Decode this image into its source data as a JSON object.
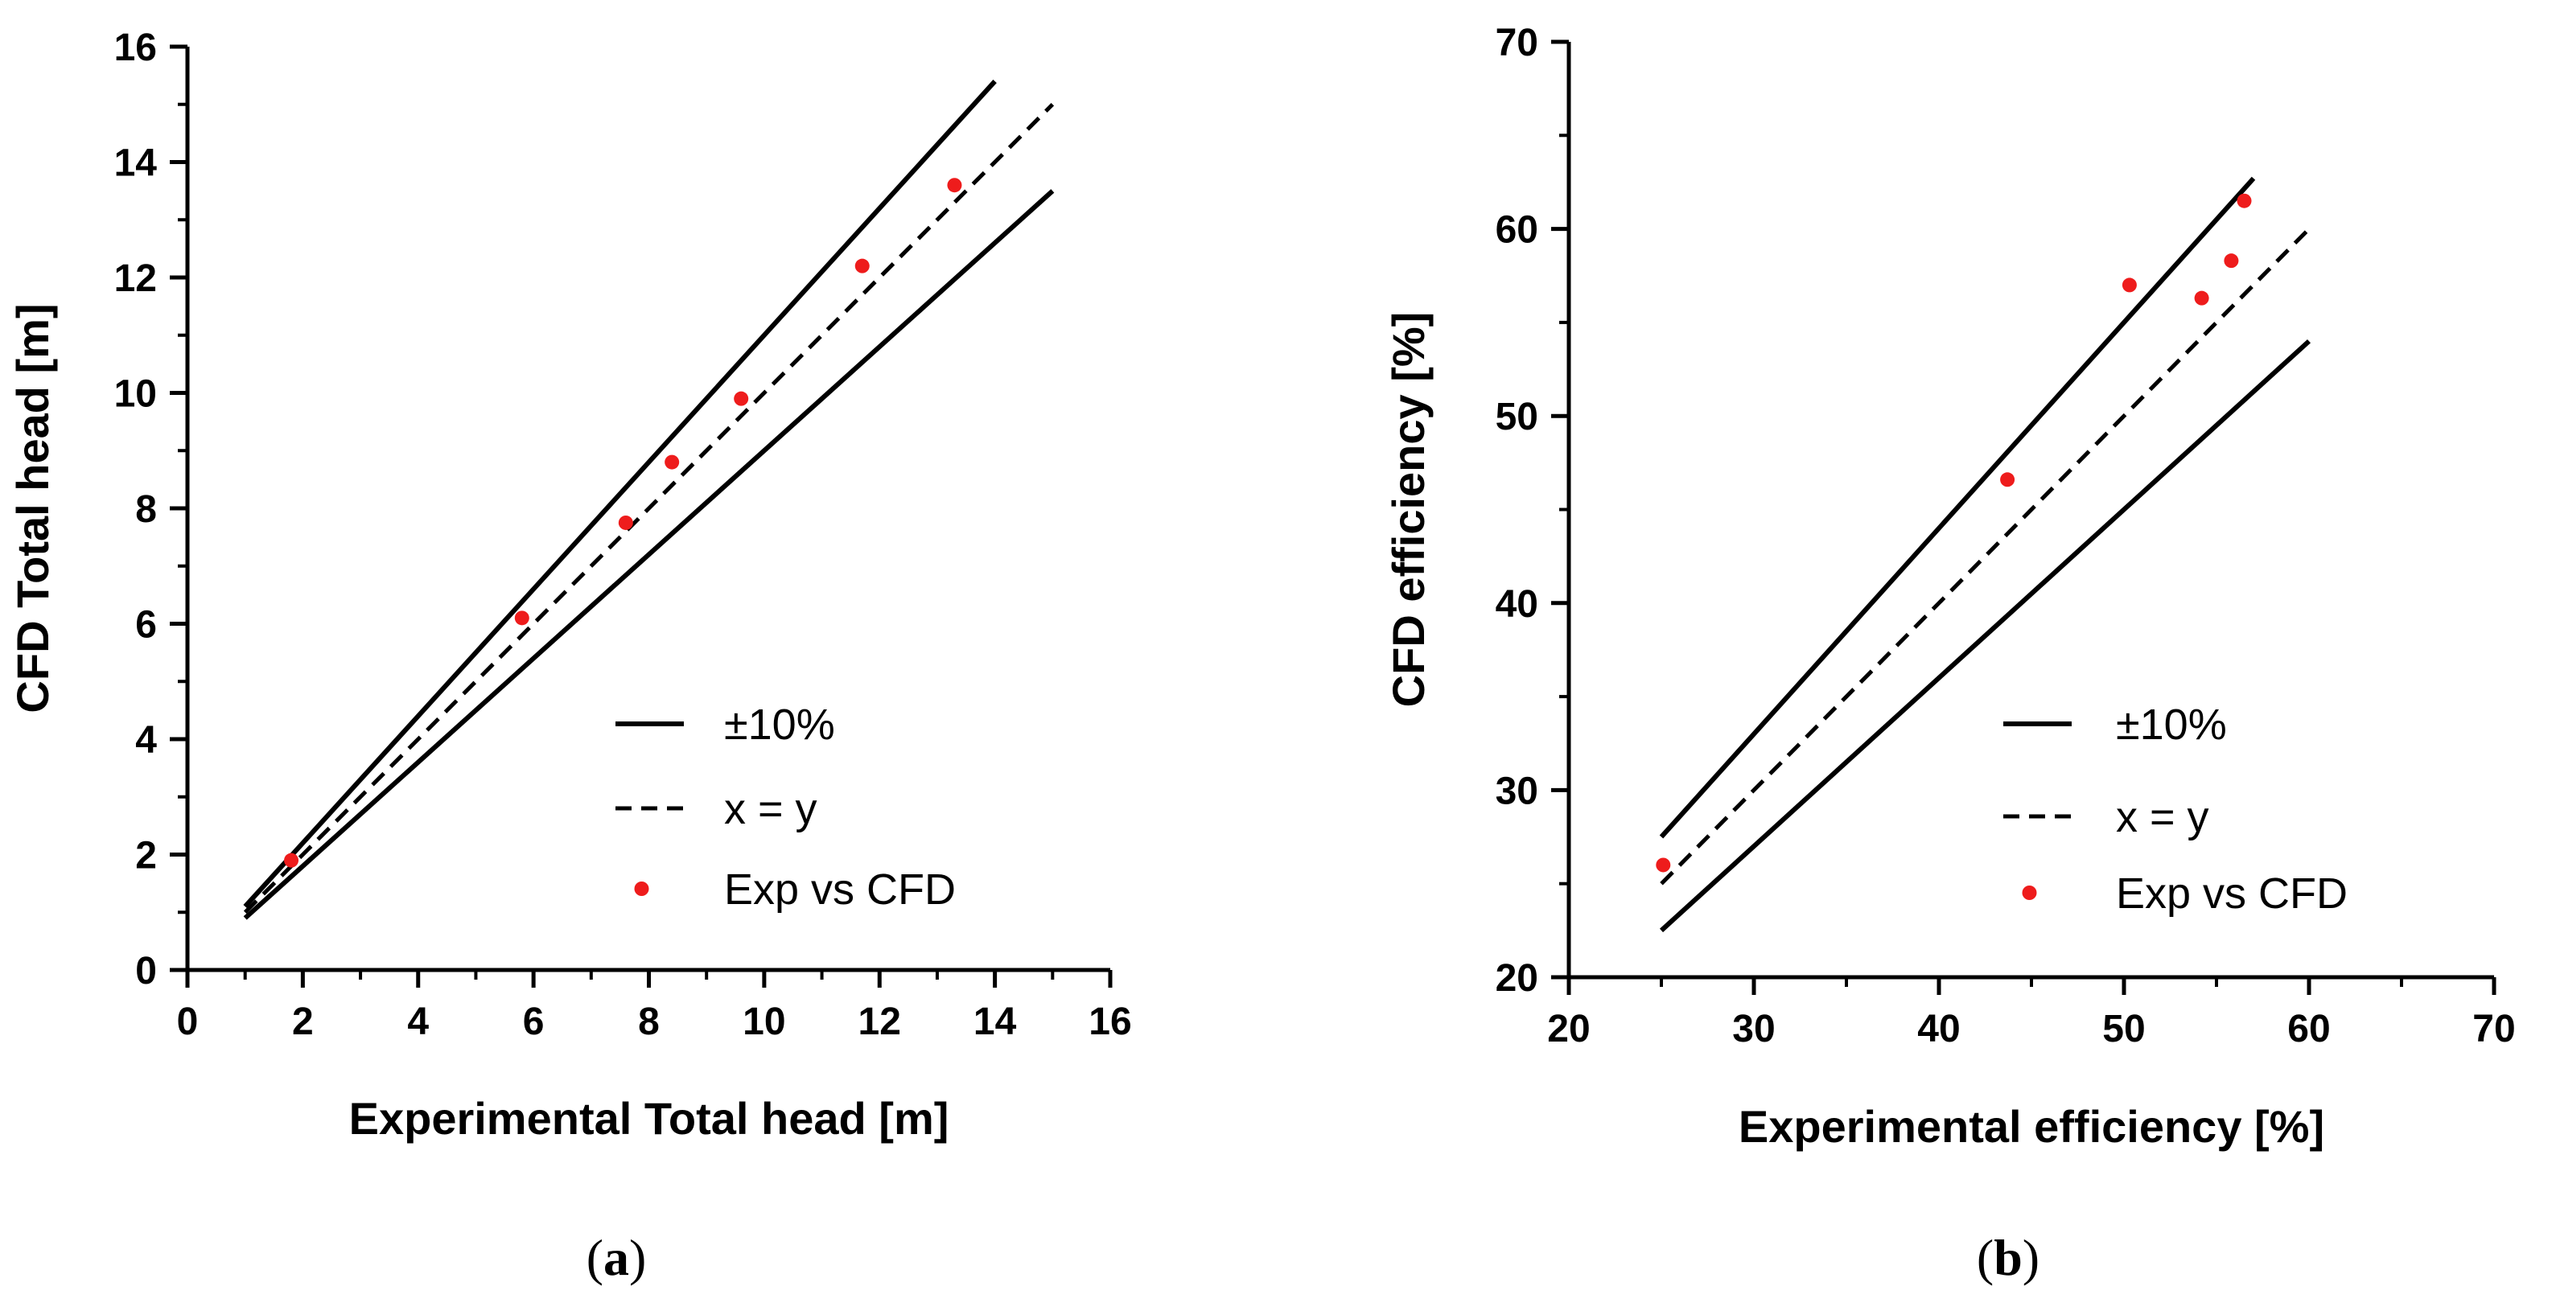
{
  "chart_data": [
    {
      "type": "scatter",
      "panel_label": "(a)",
      "xlabel": "Experimental Total head [m]",
      "ylabel": "CFD Total head [m]",
      "xlim": [
        0,
        16
      ],
      "ylim": [
        0,
        16
      ],
      "xticks": [
        0,
        2,
        4,
        6,
        8,
        10,
        12,
        14,
        16
      ],
      "yticks": [
        0,
        2,
        4,
        6,
        8,
        10,
        12,
        14,
        16
      ],
      "minor_ticks": true,
      "grid": false,
      "legend_position": "bottom-right",
      "legend": [
        {
          "label": "±10%",
          "style": "solid"
        },
        {
          "label": "x = y",
          "style": "dashed"
        },
        {
          "label": "Exp vs CFD",
          "style": "marker"
        }
      ],
      "lines": [
        {
          "style": "solid",
          "x": [
            1,
            14
          ],
          "y": [
            1.1,
            15.4
          ]
        },
        {
          "style": "solid",
          "x": [
            1,
            15
          ],
          "y": [
            0.9,
            13.5
          ]
        },
        {
          "style": "dashed",
          "x": [
            1,
            15
          ],
          "y": [
            1,
            15
          ]
        }
      ],
      "series": [
        {
          "style": "marker",
          "color": "#ee1c1c",
          "x": [
            1.8,
            5.8,
            7.6,
            8.4,
            9.6,
            11.7,
            13.3
          ],
          "y": [
            1.9,
            6.1,
            7.75,
            8.8,
            9.9,
            12.2,
            13.6
          ]
        }
      ]
    },
    {
      "type": "scatter",
      "panel_label": "(b)",
      "xlabel": "Experimental efficiency [%]",
      "ylabel": "CFD efficiency [%]",
      "xlim": [
        20,
        70
      ],
      "ylim": [
        20,
        70
      ],
      "xticks": [
        20,
        30,
        40,
        50,
        60,
        70
      ],
      "yticks": [
        20,
        30,
        40,
        50,
        60,
        70
      ],
      "minor_ticks": true,
      "grid": false,
      "legend_position": "bottom-right",
      "legend": [
        {
          "label": "±10%",
          "style": "solid"
        },
        {
          "label": "x = y",
          "style": "dashed"
        },
        {
          "label": "Exp vs CFD",
          "style": "marker"
        }
      ],
      "lines": [
        {
          "style": "solid",
          "x": [
            25,
            57
          ],
          "y": [
            27.5,
            62.7
          ]
        },
        {
          "style": "solid",
          "x": [
            25,
            60
          ],
          "y": [
            22.5,
            54
          ]
        },
        {
          "style": "dashed",
          "x": [
            25,
            60
          ],
          "y": [
            25,
            60
          ]
        }
      ],
      "series": [
        {
          "style": "marker",
          "color": "#ee1c1c",
          "x": [
            25.1,
            43.7,
            50.3,
            54.2,
            55.8,
            56.5
          ],
          "y": [
            26,
            46.6,
            57,
            56.3,
            58.3,
            61.5
          ]
        }
      ]
    }
  ]
}
